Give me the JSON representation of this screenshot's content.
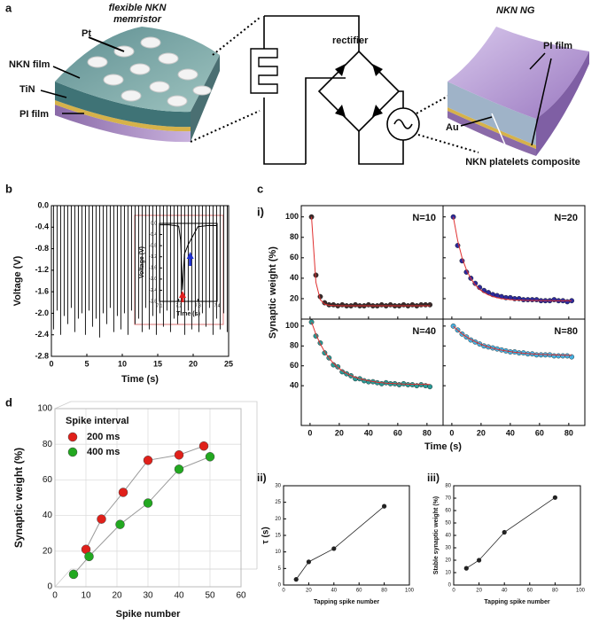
{
  "panel_labels": [
    "a",
    "b",
    "c",
    "d"
  ],
  "diagram": {
    "memristor_title": [
      "flexible NKN",
      "memristor"
    ],
    "pt": "Pt",
    "nkn_film": "NKN film",
    "tin": "TiN",
    "pi_film_left": "PI film",
    "rectifier": "rectifier",
    "ng_title": "NKN NG",
    "pi_film_right": "PI film",
    "au": "Au",
    "composite": "NKN platelets composite"
  },
  "chart_data": [
    {
      "type": "spikes",
      "xlabel": "Time (s)",
      "ylabel": "Voltage (V)",
      "color": "#000000",
      "x": [
        0.3,
        0.8,
        1.3,
        1.8,
        2.3,
        2.8,
        3.3,
        3.8,
        4.3,
        4.8,
        5.3,
        5.8,
        6.3,
        6.8,
        7.3,
        7.8,
        8.3,
        8.8,
        9.3,
        9.8,
        10.3,
        10.8,
        11.3,
        11.8,
        12.3,
        12.8,
        13.3,
        13.8,
        14.3,
        14.8,
        15.3,
        15.8,
        16.3,
        16.8,
        17.3,
        17.8,
        18.3,
        18.8,
        19.3,
        19.8,
        20.3,
        20.8,
        21.3,
        21.8,
        22.3,
        22.8,
        23.3,
        23.8,
        24.3,
        24.8
      ],
      "values": [
        -2.3,
        -1.95,
        -2.4,
        -2.05,
        -2.2,
        -1.9,
        -2.35,
        -2.1,
        -2.0,
        -2.4,
        -1.95,
        -2.25,
        -2.1,
        -2.45,
        -2.0,
        -2.2,
        -1.9,
        -2.35,
        -2.05,
        -2.3,
        -2.0,
        -2.4,
        -1.95,
        -2.2,
        -2.1,
        -2.35,
        -1.9,
        -2.3,
        -2.05,
        -2.4,
        -2.0,
        -2.25,
        -1.95,
        -2.35,
        -2.1,
        -2.2,
        -2.0,
        -2.4,
        -1.95,
        -2.3,
        -2.05,
        -2.35,
        -2.0,
        -2.25,
        -1.9,
        -2.4,
        -2.1,
        -2.3,
        -2.0,
        -2.35
      ],
      "xlim": [
        0,
        25
      ],
      "xticks": [
        0,
        5,
        10,
        15,
        20,
        25
      ],
      "ylim": [
        -2.8,
        0
      ],
      "yticks": [
        {
          "value": 0,
          "label": "0.0"
        },
        -0.4,
        -0.8,
        -1.2,
        -1.6,
        {
          "value": -2,
          "label": "-2.0"
        },
        -2.4,
        -2.8
      ]
    },
    {
      "type": "line",
      "xlabel": "Time (s)",
      "ylabel": "Voltage (V)",
      "color": "#000000",
      "x": [
        7.1,
        7.15,
        7.2,
        7.21,
        7.22,
        7.23,
        7.25,
        7.27,
        7.3,
        7.35,
        7.4
      ],
      "values": [
        -0.05,
        -0.05,
        -0.1,
        -0.6,
        -2.4,
        -1.1,
        -0.75,
        -0.5,
        -0.12,
        -0.08,
        -0.08
      ],
      "xlim": [
        7.1,
        7.4
      ],
      "xticks": [
        7.1,
        7.2,
        7.3,
        7.4
      ],
      "ylim": [
        -2.8,
        0
      ],
      "yticks": [
        {
          "value": 0,
          "label": "0.0"
        },
        -0.4,
        -0.8,
        -1.2,
        -1.6,
        {
          "value": -2,
          "label": "-2.0"
        },
        -2.4,
        -2.8
      ]
    },
    {
      "type": "panels",
      "label": "i)",
      "xlabel": "Time (s)",
      "ylabel": "Synaptic weight (%)",
      "x": [
        1,
        4,
        7,
        10,
        13,
        16,
        19,
        22,
        25,
        28,
        31,
        34,
        37,
        40,
        43,
        46,
        49,
        52,
        55,
        58,
        61,
        64,
        67,
        70,
        73,
        76,
        79,
        82
      ],
      "xlim": [
        -6,
        91
      ],
      "xticks": [
        0,
        20,
        40,
        60,
        80
      ],
      "panels": [
        {
          "annotation": "N=10",
          "ylim": [
            0,
            111
          ],
          "yticks": [
            20,
            40,
            60,
            80,
            100
          ],
          "series": [
            {
              "color": "#3b2a2a",
              "values": [
                100,
                43,
                22,
                16,
                14,
                14,
                13,
                14,
                13,
                13,
                14,
                13,
                13,
                14,
                13,
                13,
                14,
                13,
                14,
                13,
                13,
                14,
                13,
                14,
                13,
                14,
                14,
                14
              ]
            },
            {
              "color": "#e03030",
              "style": "line",
              "values": [
                100,
                36,
                19,
                14.6,
                13.5,
                13.2,
                13.1,
                13,
                13,
                13,
                13,
                13,
                13,
                13,
                13,
                13,
                13,
                13,
                13,
                13,
                13,
                13,
                13,
                13,
                13,
                13,
                13,
                13
              ]
            }
          ]
        },
        {
          "annotation": "N=20",
          "ylim": [
            0,
            111
          ],
          "yticks": [
            20,
            40,
            60,
            80,
            100
          ],
          "series": [
            {
              "color": "#2c2a9c",
              "values": [
                100,
                72,
                57,
                46,
                40,
                35,
                31,
                28,
                26,
                24,
                23,
                22,
                21,
                21,
                20,
                20,
                19,
                19,
                19,
                19,
                18,
                18,
                18,
                19,
                18,
                18,
                17,
                18
              ]
            },
            {
              "color": "#e03030",
              "style": "line",
              "values": [
                100,
                76.8,
                60,
                48.2,
                39.6,
                33.5,
                29.1,
                26,
                23.7,
                22.1,
                20.9,
                20.1,
                19.5,
                19.1,
                18.8,
                18.6,
                18.4,
                18.3,
                18.2,
                18.2,
                18.1,
                18.1,
                18.1,
                18,
                18,
                18,
                18,
                18
              ]
            }
          ]
        },
        {
          "annotation": "N=40",
          "ylim": [
            0,
            107
          ],
          "yticks": [
            40,
            60,
            80,
            100
          ],
          "series": [
            {
              "color": "#2a9a96",
              "values": [
                104,
                90,
                83,
                73,
                68,
                61,
                59,
                54,
                52,
                50,
                47,
                47,
                45,
                44,
                44,
                43,
                42,
                43,
                42,
                42,
                41,
                42,
                41,
                41,
                40,
                41,
                40,
                39
              ]
            },
            {
              "color": "#e03030",
              "style": "line",
              "values": [
                104,
                91.8,
                82,
                74.1,
                67.7,
                62.6,
                58.4,
                55,
                52.3,
                50.2,
                48.4,
                47,
                45.8,
                44.9,
                44.2,
                43.5,
                43,
                42.6,
                42.3,
                42.1,
                41.9,
                41.7,
                41.6,
                41.4,
                41.4,
                41.3,
                41.3,
                41.2
              ]
            }
          ]
        },
        {
          "annotation": "N=80",
          "ylim": [
            0,
            107
          ],
          "yticks": [
            40,
            60,
            80,
            100
          ],
          "series": [
            {
              "color": "#45b2e2",
              "values": [
                100,
                96,
                92,
                89,
                86,
                84,
                82,
                80,
                79,
                78,
                77,
                76,
                75,
                74,
                74,
                73,
                73,
                72,
                72,
                71,
                71,
                71,
                71,
                70,
                70,
                70,
                70,
                69
              ]
            },
            {
              "color": "#e03030",
              "style": "line",
              "values": [
                100,
                95.8,
                92.2,
                89.1,
                86.5,
                84.2,
                82.2,
                80.5,
                79,
                77.8,
                76.7,
                75.8,
                75,
                74.3,
                73.7,
                73.2,
                72.7,
                72.3,
                72,
                71.7,
                71.5,
                71.3,
                71.1,
                71,
                70.8,
                70.7,
                70.6,
                70.5
              ]
            }
          ]
        }
      ]
    },
    {
      "type": "line-marker",
      "label": "ii)",
      "xlabel": "Tapping spike number",
      "ylabel": "τ (s)",
      "color": "#222222",
      "x": [
        10,
        20,
        40,
        80
      ],
      "values": [
        1.7,
        7,
        11,
        23.8
      ],
      "xlim": [
        0,
        100
      ],
      "xticks": [
        0,
        20,
        40,
        60,
        80,
        100
      ],
      "ylim": [
        0,
        30
      ],
      "yticks": [
        0,
        5,
        10,
        15,
        20,
        25,
        30
      ]
    },
    {
      "type": "line-marker",
      "label": "iii)",
      "xlabel": "Tapping spike number",
      "ylabel": "Stable synaptic weight (%)",
      "color": "#222222",
      "x": [
        10,
        20,
        40,
        80
      ],
      "values": [
        13.5,
        20,
        42.5,
        70.5
      ],
      "xlim": [
        0,
        100
      ],
      "xticks": [
        0,
        20,
        40,
        60,
        80,
        100
      ],
      "ylim": [
        0,
        80
      ],
      "yticks": [
        0,
        10,
        20,
        30,
        40,
        50,
        60,
        70,
        80
      ]
    },
    {
      "type": "scatter",
      "xlabel": "Spike number",
      "ylabel": "Synaptic weight (%)",
      "legend_title": "Spike interval",
      "legend": "upper left",
      "grid": true,
      "xlim": [
        0,
        60
      ],
      "xticks": [
        0,
        10,
        20,
        30,
        40,
        50,
        60
      ],
      "ylim": [
        0,
        100
      ],
      "yticks": [
        0,
        20,
        40,
        60,
        80,
        100
      ],
      "series": [
        {
          "name": "200 ms",
          "color": "#e0201a",
          "x": [
            10,
            15,
            22,
            30,
            40,
            48
          ],
          "values": [
            21,
            38,
            53,
            71,
            74,
            79
          ]
        },
        {
          "name": "400 ms",
          "color": "#22a820",
          "x": [
            6,
            11,
            21,
            30,
            40,
            50
          ],
          "values": [
            7,
            17,
            35,
            47,
            66,
            73
          ]
        }
      ]
    }
  ]
}
